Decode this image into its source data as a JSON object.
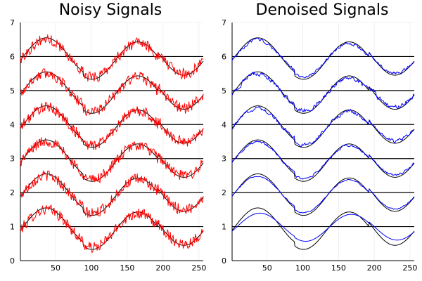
{
  "chart_data": [
    {
      "type": "line",
      "title": "Noisy Signals",
      "xlabel": "",
      "ylabel": "",
      "xlim": [
        1,
        256
      ],
      "ylim": [
        0,
        7
      ],
      "xticks": [
        50,
        100,
        150,
        200,
        250
      ],
      "yticks": [
        0,
        1,
        2,
        3,
        4,
        5,
        6,
        7
      ],
      "grid": true,
      "legend": "none",
      "num_signals": 6,
      "signal_offsets": [
        1,
        2,
        3,
        4,
        5,
        6
      ],
      "series": [
        {
          "role": "clean reference signals",
          "color": "#000000"
        },
        {
          "role": "noisy signals",
          "color": "#ff0000"
        },
        {
          "role": "horizontal baselines",
          "color": "#000000"
        }
      ]
    },
    {
      "type": "line",
      "title": "Denoised Signals",
      "xlabel": "",
      "ylabel": "",
      "xlim": [
        1,
        256
      ],
      "ylim": [
        0,
        7
      ],
      "xticks": [
        50,
        100,
        150,
        200,
        250
      ],
      "yticks": [
        0,
        1,
        2,
        3,
        4,
        5,
        6,
        7
      ],
      "grid": true,
      "legend": "none",
      "num_signals": 6,
      "signal_offsets": [
        1,
        2,
        3,
        4,
        5,
        6
      ],
      "series": [
        {
          "role": "clean reference signals",
          "color": "#000000"
        },
        {
          "role": "denoised signals",
          "color": "#0000ff"
        },
        {
          "role": "horizontal baselines",
          "color": "#000000"
        }
      ]
    }
  ],
  "panels": [
    {
      "title": "Noisy Signals"
    },
    {
      "title": "Denoised Signals"
    }
  ]
}
